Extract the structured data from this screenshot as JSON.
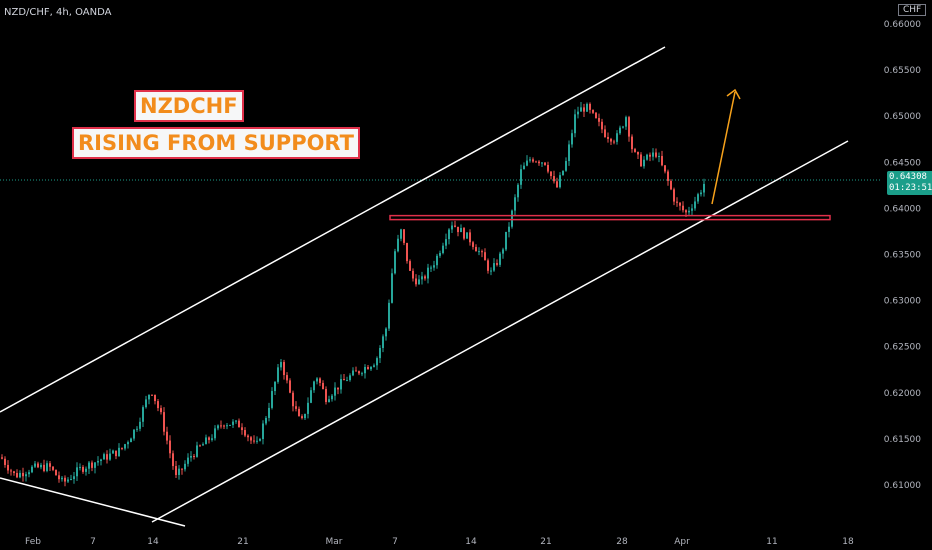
{
  "header": {
    "symbol": "NZD/CHF, 4h, OANDA",
    "currency": "CHF"
  },
  "annotations": {
    "title_line1": "NZDCHF",
    "title_line2": "RISING FROM SUPPORT"
  },
  "last_price": {
    "price": "0.64308",
    "countdown": "01:23:51"
  },
  "colors": {
    "up": "#26a69a",
    "down": "#ef5350",
    "channel": "#ffffff",
    "support": "#e0304a",
    "arrow": "#f7a21b",
    "price_line": "#1b9e8a"
  },
  "chart_data": {
    "type": "candlestick",
    "y_ticks": [
      "0.61000",
      "0.61500",
      "0.62000",
      "0.62500",
      "0.63000",
      "0.63500",
      "0.64000",
      "0.64500",
      "0.65000",
      "0.65500",
      "0.66000"
    ],
    "x_ticks": [
      "Feb",
      "7",
      "14",
      "21",
      "Mar",
      "7",
      "14",
      "21",
      "28",
      "Apr",
      "11",
      "18"
    ],
    "y_range": [
      0.606,
      0.665
    ],
    "support_level": 0.639,
    "current_price": 0.64308,
    "close_path": [
      [
        0,
        0.613
      ],
      [
        14,
        0.611
      ],
      [
        30,
        0.6118
      ],
      [
        48,
        0.612
      ],
      [
        62,
        0.6102
      ],
      [
        80,
        0.6118
      ],
      [
        100,
        0.6128
      ],
      [
        120,
        0.6138
      ],
      [
        135,
        0.6162
      ],
      [
        150,
        0.6205
      ],
      [
        160,
        0.6175
      ],
      [
        175,
        0.6108
      ],
      [
        190,
        0.6132
      ],
      [
        210,
        0.6152
      ],
      [
        222,
        0.6168
      ],
      [
        240,
        0.6165
      ],
      [
        255,
        0.614
      ],
      [
        265,
        0.6175
      ],
      [
        280,
        0.6235
      ],
      [
        290,
        0.6195
      ],
      [
        300,
        0.6165
      ],
      [
        315,
        0.622
      ],
      [
        325,
        0.6195
      ],
      [
        345,
        0.6215
      ],
      [
        360,
        0.6225
      ],
      [
        375,
        0.6235
      ],
      [
        385,
        0.627
      ],
      [
        393,
        0.635
      ],
      [
        400,
        0.6375
      ],
      [
        410,
        0.6325
      ],
      [
        420,
        0.632
      ],
      [
        435,
        0.6345
      ],
      [
        450,
        0.6385
      ],
      [
        460,
        0.6375
      ],
      [
        470,
        0.6365
      ],
      [
        480,
        0.635
      ],
      [
        490,
        0.633
      ],
      [
        500,
        0.635
      ],
      [
        510,
        0.639
      ],
      [
        520,
        0.644
      ],
      [
        530,
        0.6455
      ],
      [
        545,
        0.645
      ],
      [
        555,
        0.642
      ],
      [
        565,
        0.645
      ],
      [
        575,
        0.6505
      ],
      [
        585,
        0.651
      ],
      [
        595,
        0.6495
      ],
      [
        605,
        0.648
      ],
      [
        615,
        0.6475
      ],
      [
        625,
        0.65
      ],
      [
        632,
        0.646
      ],
      [
        640,
        0.645
      ],
      [
        655,
        0.646
      ],
      [
        665,
        0.6435
      ],
      [
        675,
        0.6405
      ],
      [
        685,
        0.6395
      ],
      [
        695,
        0.641
      ],
      [
        705,
        0.6431
      ]
    ]
  }
}
